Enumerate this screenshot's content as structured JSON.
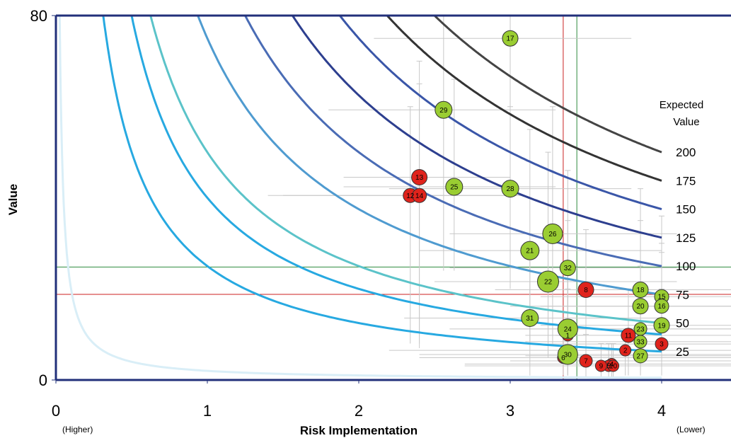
{
  "chart_data": {
    "type": "scatter",
    "title": "",
    "xlabel": "Risk Implementation",
    "ylabel": "Value",
    "xlim": [
      0,
      4.5
    ],
    "ylim": [
      0,
      80
    ],
    "x_ticks": [
      "0",
      "1",
      "2",
      "3",
      "4"
    ],
    "y_ticks": [
      "0",
      "80"
    ],
    "x_left_note": "(Higher)",
    "x_right_note": "(Lower)",
    "expected_value_title": [
      "Expected",
      "Value"
    ],
    "iso_curves": [
      {
        "label": "",
        "value": 2,
        "color": "#d9eef7"
      },
      {
        "label": "25",
        "value": 25,
        "color": "#27a9e1"
      },
      {
        "label": "",
        "value": 40,
        "color": "#27a9e1"
      },
      {
        "label": "50",
        "value": 50,
        "color": "#5bc3c9"
      },
      {
        "label": "75",
        "value": 75,
        "color": "#4f9bd0"
      },
      {
        "label": "100",
        "value": 100,
        "color": "#4a6cb5"
      },
      {
        "label": "125",
        "value": 125,
        "color": "#2d3f8f"
      },
      {
        "label": "150",
        "value": 150,
        "color": "#3a56a8"
      },
      {
        "label": "175",
        "value": 175,
        "color": "#333333"
      },
      {
        "label": "200",
        "value": 200,
        "color": "#444444"
      }
    ],
    "reference_lines": {
      "vertical": [
        {
          "x": 3.35,
          "color": "#cc2222"
        },
        {
          "x": 3.44,
          "color": "#2e8b3e"
        }
      ],
      "horizontal": [
        {
          "y": 24.8,
          "color": "#2e8b3e"
        },
        {
          "y": 18.8,
          "color": "#cc2222"
        }
      ]
    },
    "points": [
      {
        "id": "1",
        "x": 3.38,
        "y": 9.8,
        "r": 4,
        "color": "red",
        "xerr": [
          3.3,
          3.5
        ],
        "yerr": [
          1,
          22
        ]
      },
      {
        "id": "2",
        "x": 3.76,
        "y": 6.5,
        "r": 4,
        "color": "red",
        "xerr": [
          2.2,
          4.5
        ],
        "yerr": [
          1,
          10
        ]
      },
      {
        "id": "3",
        "x": 4.0,
        "y": 7.9,
        "r": 5,
        "color": "red",
        "xerr": [
          3.2,
          4.5
        ],
        "yerr": [
          1,
          20
        ]
      },
      {
        "id": "4",
        "x": 3.67,
        "y": 3.5,
        "r": 4,
        "color": "red",
        "xerr": [
          2.7,
          4.5
        ],
        "yerr": [
          0.5,
          8
        ]
      },
      {
        "id": "5",
        "x": 3.65,
        "y": 3.1,
        "r": 4,
        "color": "red",
        "xerr": [
          2.7,
          4.5
        ],
        "yerr": [
          0.5,
          8
        ]
      },
      {
        "id": "6",
        "x": 3.35,
        "y": 4.9,
        "r": 4,
        "color": "red",
        "xerr": [
          2.4,
          4.5
        ],
        "yerr": [
          1,
          10
        ]
      },
      {
        "id": "7",
        "x": 3.5,
        "y": 4.2,
        "r": 5,
        "color": "red",
        "xerr": [
          3.0,
          4.5
        ],
        "yerr": [
          0.5,
          10
        ]
      },
      {
        "id": "8",
        "x": 3.5,
        "y": 19.8,
        "r": 7,
        "color": "red",
        "xerr": [
          2.9,
          4.1
        ],
        "yerr": [
          9,
          33
        ]
      },
      {
        "id": "9",
        "x": 3.6,
        "y": 3.1,
        "r": 4,
        "color": "red",
        "xerr": [
          2.8,
          4.5
        ],
        "yerr": [
          0.5,
          8
        ]
      },
      {
        "id": "10",
        "x": 3.68,
        "y": 3.1,
        "r": 4,
        "color": "red",
        "xerr": [
          2.7,
          4.5
        ],
        "yerr": [
          0.5,
          8
        ]
      },
      {
        "id": "11",
        "x": 3.78,
        "y": 9.8,
        "r": 6,
        "color": "red",
        "xerr": [
          3.1,
          4.5
        ],
        "yerr": [
          1,
          20
        ]
      },
      {
        "id": "12",
        "x": 2.34,
        "y": 40.5,
        "r": 6,
        "color": "red",
        "xerr": [
          1.4,
          3.0
        ],
        "yerr": [
          8,
          60
        ]
      },
      {
        "id": "13",
        "x": 2.4,
        "y": 44.5,
        "r": 7,
        "color": "red",
        "xerr": [
          1.9,
          3.0
        ],
        "yerr": [
          8,
          70
        ]
      },
      {
        "id": "14",
        "x": 2.4,
        "y": 40.5,
        "r": 6,
        "color": "red",
        "xerr": [
          1.5,
          3.1
        ],
        "yerr": [
          7,
          65
        ]
      },
      {
        "id": "15",
        "x": 4.0,
        "y": 18.3,
        "r": 6,
        "color": "green",
        "xerr": [
          3.2,
          4.5
        ],
        "yerr": [
          6,
          36
        ]
      },
      {
        "id": "16",
        "x": 4.0,
        "y": 16.2,
        "r": 6,
        "color": "green",
        "xerr": [
          3.2,
          4.5
        ],
        "yerr": [
          6,
          30
        ]
      },
      {
        "id": "17",
        "x": 3.0,
        "y": 75.0,
        "r": 7,
        "color": "green",
        "xerr": [
          2.1,
          3.8
        ],
        "yerr": [
          28,
          80
        ]
      },
      {
        "id": "18",
        "x": 3.86,
        "y": 19.8,
        "r": 7,
        "color": "green",
        "xerr": [
          3.0,
          4.5
        ],
        "yerr": [
          6,
          42
        ]
      },
      {
        "id": "19",
        "x": 4.0,
        "y": 12.0,
        "r": 7,
        "color": "green",
        "xerr": [
          3.2,
          4.5
        ],
        "yerr": [
          3,
          28
        ]
      },
      {
        "id": "20",
        "x": 3.86,
        "y": 16.2,
        "r": 7,
        "color": "green",
        "xerr": [
          3.0,
          4.5
        ],
        "yerr": [
          5,
          35
        ]
      },
      {
        "id": "21",
        "x": 3.13,
        "y": 28.4,
        "r": 9,
        "color": "green",
        "xerr": [
          2.4,
          4.0
        ],
        "yerr": [
          8,
          55
        ]
      },
      {
        "id": "22",
        "x": 3.25,
        "y": 21.6,
        "r": 11,
        "color": "green",
        "xerr": [
          2.5,
          4.1
        ],
        "yerr": [
          5,
          50
        ]
      },
      {
        "id": "23",
        "x": 3.86,
        "y": 11.2,
        "r": 5,
        "color": "green",
        "xerr": [
          3.0,
          4.5
        ],
        "yerr": [
          2,
          25
        ]
      },
      {
        "id": "24",
        "x": 3.38,
        "y": 11.2,
        "r": 10,
        "color": "green",
        "xerr": [
          2.6,
          4.5
        ],
        "yerr": [
          1,
          35
        ]
      },
      {
        "id": "25",
        "x": 2.63,
        "y": 42.4,
        "r": 8,
        "color": "green",
        "xerr": [
          1.9,
          3.3
        ],
        "yerr": [
          24,
          66
        ]
      },
      {
        "id": "26",
        "x": 3.28,
        "y": 32.1,
        "r": 10,
        "color": "green",
        "xerr": [
          2.6,
          4.1
        ],
        "yerr": [
          8,
          60
        ]
      },
      {
        "id": "27",
        "x": 3.86,
        "y": 5.3,
        "r": 6,
        "color": "green",
        "xerr": [
          3.1,
          4.5
        ],
        "yerr": [
          1,
          12
        ]
      },
      {
        "id": "28",
        "x": 3.0,
        "y": 42.0,
        "r": 8,
        "color": "green",
        "xerr": [
          2.2,
          3.8
        ],
        "yerr": [
          20,
          60
        ]
      },
      {
        "id": "29",
        "x": 2.56,
        "y": 59.3,
        "r": 8,
        "color": "green",
        "xerr": [
          1.8,
          3.3
        ],
        "yerr": [
          24,
          80
        ]
      },
      {
        "id": "30",
        "x": 3.38,
        "y": 5.6,
        "r": 10,
        "color": "green",
        "xerr": [
          2.4,
          4.5
        ],
        "yerr": [
          1,
          20
        ]
      },
      {
        "id": "31",
        "x": 3.13,
        "y": 13.6,
        "r": 8,
        "color": "green",
        "xerr": [
          2.3,
          4.0
        ],
        "yerr": [
          1,
          30
        ]
      },
      {
        "id": "32",
        "x": 3.38,
        "y": 24.6,
        "r": 7,
        "color": "green",
        "xerr": [
          2.6,
          4.1
        ],
        "yerr": [
          5,
          46
        ]
      },
      {
        "id": "33",
        "x": 3.86,
        "y": 8.4,
        "r": 5,
        "color": "green",
        "xerr": [
          3.1,
          4.5
        ],
        "yerr": [
          1,
          18
        ]
      }
    ],
    "grid": false,
    "legend": "none"
  }
}
